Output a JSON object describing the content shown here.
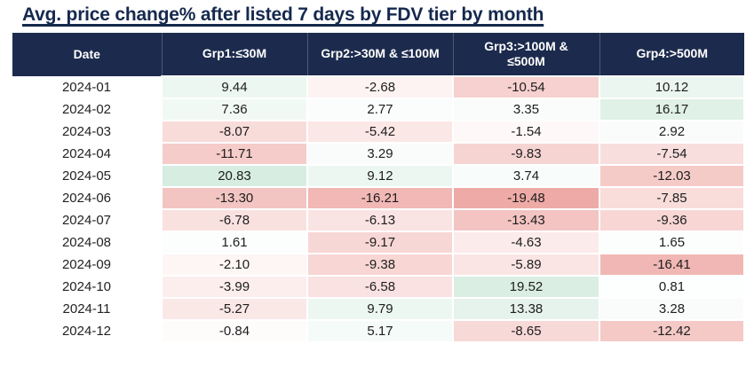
{
  "title": "Avg. price change% after listed 7 days by FDV tier by month",
  "chart_data": {
    "type": "heatmap",
    "columns": [
      "Date",
      "Grp1:≤30M",
      "Grp2:>30M & ≤100M",
      "Grp3:>100M &\n≤500M",
      "Grp4:>500M"
    ],
    "rows": [
      {
        "date": "2024-01",
        "values": [
          9.44,
          -2.68,
          -10.54,
          10.12
        ]
      },
      {
        "date": "2024-02",
        "values": [
          7.36,
          2.77,
          3.35,
          16.17
        ]
      },
      {
        "date": "2024-03",
        "values": [
          -8.07,
          -5.42,
          -1.54,
          2.92
        ]
      },
      {
        "date": "2024-04",
        "values": [
          -11.71,
          3.29,
          -9.83,
          -7.54
        ]
      },
      {
        "date": "2024-05",
        "values": [
          20.83,
          9.12,
          3.74,
          -12.03
        ]
      },
      {
        "date": "2024-06",
        "values": [
          -13.3,
          -16.21,
          -19.48,
          -7.85
        ]
      },
      {
        "date": "2024-07",
        "values": [
          -6.78,
          -6.13,
          -13.43,
          -9.36
        ]
      },
      {
        "date": "2024-08",
        "values": [
          1.61,
          -9.17,
          -4.63,
          1.65
        ]
      },
      {
        "date": "2024-09",
        "values": [
          -2.1,
          -9.38,
          -5.89,
          -16.41
        ]
      },
      {
        "date": "2024-10",
        "values": [
          -3.99,
          -6.58,
          19.52,
          0.81
        ]
      },
      {
        "date": "2024-11",
        "values": [
          -5.27,
          9.79,
          13.38,
          3.28
        ]
      },
      {
        "date": "2024-12",
        "values": [
          -0.84,
          5.17,
          -8.65,
          -12.42
        ]
      }
    ],
    "color_scale": {
      "green_end": "#d7ede1",
      "red_end": "#eeaaa6",
      "mid": "#ffffff",
      "domain_max": 20.83,
      "domain_min": -19.48
    },
    "header_bg": "#1c2b4d",
    "title_color": "#15294e",
    "value_format_decimals": 2,
    "legend_position": "none",
    "grid": false
  }
}
